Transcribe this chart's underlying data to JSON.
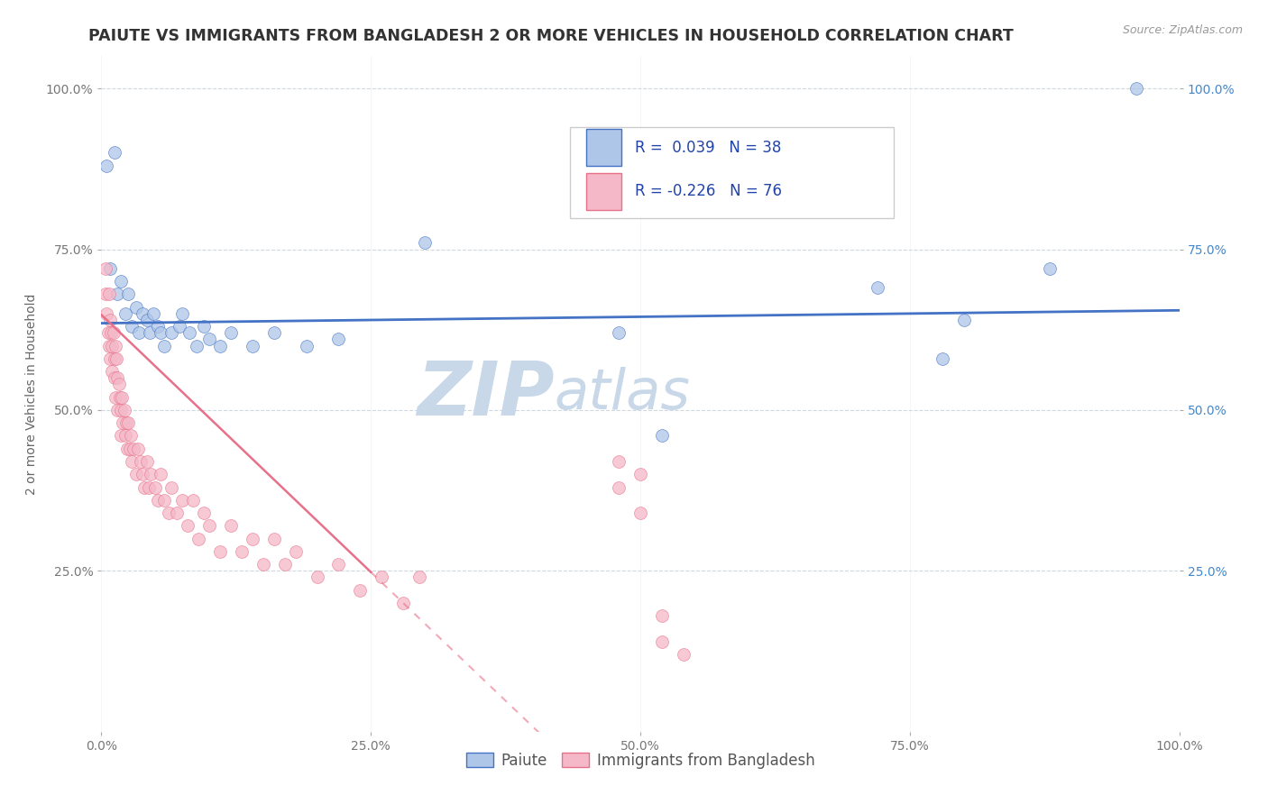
{
  "title": "PAIUTE VS IMMIGRANTS FROM BANGLADESH 2 OR MORE VEHICLES IN HOUSEHOLD CORRELATION CHART",
  "source_text": "Source: ZipAtlas.com",
  "ylabel": "2 or more Vehicles in Household",
  "legend_labels": [
    "Paiute",
    "Immigrants from Bangladesh"
  ],
  "r_paiute": 0.039,
  "n_paiute": 38,
  "r_bangladesh": -0.226,
  "n_bangladesh": 76,
  "xlim": [
    0.0,
    1.0
  ],
  "ylim": [
    0.0,
    1.05
  ],
  "xtick_labels": [
    "0.0%",
    "25.0%",
    "50.0%",
    "75.0%",
    "100.0%"
  ],
  "xtick_vals": [
    0.0,
    0.25,
    0.5,
    0.75,
    1.0
  ],
  "ytick_labels": [
    "25.0%",
    "50.0%",
    "75.0%",
    "100.0%"
  ],
  "ytick_vals": [
    0.25,
    0.5,
    0.75,
    1.0
  ],
  "right_ytick_labels": [
    "25.0%",
    "50.0%",
    "75.0%",
    "100.0%"
  ],
  "color_paiute": "#aec6e8",
  "color_bangladesh": "#f4b8c8",
  "color_paiute_line": "#4472c4",
  "color_bangladesh_line": "#e8718a",
  "scatter_alpha": 0.75,
  "marker_size": 100,
  "paiute_x": [
    0.005,
    0.012,
    0.008,
    0.015,
    0.018,
    0.022,
    0.025,
    0.028,
    0.032,
    0.035,
    0.038,
    0.042,
    0.045,
    0.048,
    0.052,
    0.055,
    0.058,
    0.065,
    0.072,
    0.075,
    0.082,
    0.088,
    0.095,
    0.1,
    0.11,
    0.12,
    0.14,
    0.16,
    0.19,
    0.22,
    0.3,
    0.48,
    0.52,
    0.72,
    0.78,
    0.8,
    0.88,
    0.96
  ],
  "paiute_y": [
    0.88,
    0.9,
    0.72,
    0.68,
    0.7,
    0.65,
    0.68,
    0.63,
    0.66,
    0.62,
    0.65,
    0.64,
    0.62,
    0.65,
    0.63,
    0.62,
    0.6,
    0.62,
    0.63,
    0.65,
    0.62,
    0.6,
    0.63,
    0.61,
    0.6,
    0.62,
    0.6,
    0.62,
    0.6,
    0.61,
    0.76,
    0.62,
    0.46,
    0.69,
    0.58,
    0.64,
    0.72,
    1.0
  ],
  "bangladesh_x": [
    0.004,
    0.004,
    0.005,
    0.006,
    0.007,
    0.007,
    0.008,
    0.008,
    0.009,
    0.01,
    0.01,
    0.011,
    0.012,
    0.012,
    0.013,
    0.013,
    0.014,
    0.015,
    0.015,
    0.016,
    0.017,
    0.018,
    0.018,
    0.019,
    0.02,
    0.021,
    0.022,
    0.023,
    0.024,
    0.025,
    0.026,
    0.027,
    0.028,
    0.03,
    0.032,
    0.034,
    0.036,
    0.038,
    0.04,
    0.042,
    0.044,
    0.046,
    0.05,
    0.052,
    0.055,
    0.058,
    0.062,
    0.065,
    0.07,
    0.075,
    0.08,
    0.085,
    0.09,
    0.095,
    0.1,
    0.11,
    0.12,
    0.13,
    0.14,
    0.15,
    0.16,
    0.17,
    0.18,
    0.2,
    0.22,
    0.24,
    0.26,
    0.28,
    0.295,
    0.48,
    0.48,
    0.5,
    0.5,
    0.52,
    0.52,
    0.54
  ],
  "bangladesh_y": [
    0.68,
    0.72,
    0.65,
    0.62,
    0.68,
    0.6,
    0.64,
    0.58,
    0.62,
    0.6,
    0.56,
    0.62,
    0.58,
    0.55,
    0.6,
    0.52,
    0.58,
    0.55,
    0.5,
    0.54,
    0.52,
    0.5,
    0.46,
    0.52,
    0.48,
    0.5,
    0.46,
    0.48,
    0.44,
    0.48,
    0.44,
    0.46,
    0.42,
    0.44,
    0.4,
    0.44,
    0.42,
    0.4,
    0.38,
    0.42,
    0.38,
    0.4,
    0.38,
    0.36,
    0.4,
    0.36,
    0.34,
    0.38,
    0.34,
    0.36,
    0.32,
    0.36,
    0.3,
    0.34,
    0.32,
    0.28,
    0.32,
    0.28,
    0.3,
    0.26,
    0.3,
    0.26,
    0.28,
    0.24,
    0.26,
    0.22,
    0.24,
    0.2,
    0.24,
    0.38,
    0.42,
    0.34,
    0.4,
    0.18,
    0.14,
    0.12
  ],
  "watermark_text": "ZIPatlas",
  "watermark_color": "#c8d8e8",
  "watermark_fontsize": 60,
  "background_color": "#ffffff",
  "grid_color": "#d0d8e0",
  "title_fontsize": 12.5,
  "axis_label_fontsize": 10,
  "tick_fontsize": 10,
  "legend_fontsize": 12,
  "paiute_line_y0": 0.635,
  "paiute_line_y1": 0.655,
  "bangladesh_line_y0": 0.648,
  "bangladesh_line_y1": 0.248,
  "bangladesh_line_solid_x1": 0.25,
  "bangladesh_line_dashed_x1": 0.5
}
